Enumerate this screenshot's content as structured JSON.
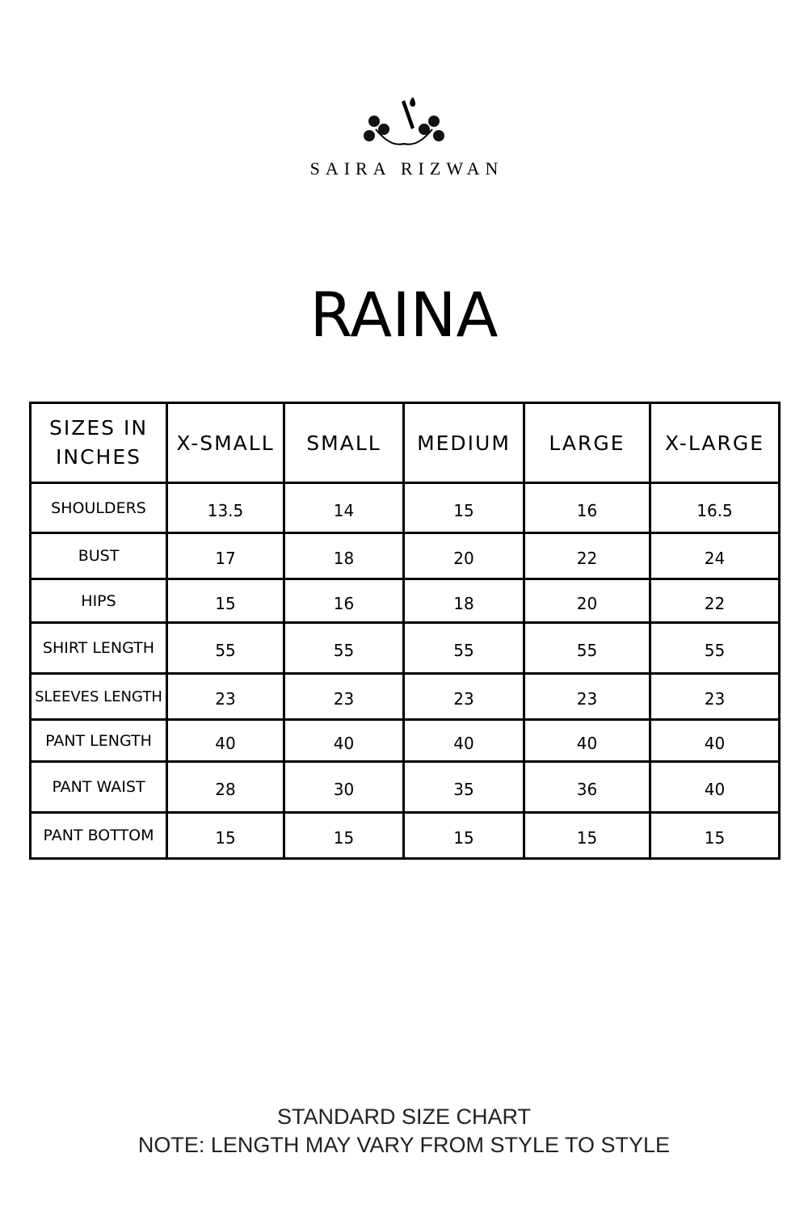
{
  "brand": {
    "name": "SAIRA RIZWAN",
    "logo_icon": "floral-s-monogram"
  },
  "title": "RAINA",
  "table": {
    "header": [
      "SIZES IN INCHES",
      "X-SMALL",
      "SMALL",
      "MEDIUM",
      "LARGE",
      "X-LARGE"
    ],
    "rows": [
      {
        "label": "SHOULDERS",
        "values": [
          "13.5",
          "14",
          "15",
          "16",
          "16.5"
        ]
      },
      {
        "label": "BUST",
        "values": [
          "17",
          "18",
          "20",
          "22",
          "24"
        ]
      },
      {
        "label": "HIPS",
        "values": [
          "15",
          "16",
          "18",
          "20",
          "22"
        ]
      },
      {
        "label": "SHIRT LENGTH",
        "values": [
          "55",
          "55",
          "55",
          "55",
          "55"
        ]
      },
      {
        "label": "SLEEVES LENGTH",
        "values": [
          "23",
          "23",
          "23",
          "23",
          "23"
        ]
      },
      {
        "label": "PANT LENGTH",
        "values": [
          "40",
          "40",
          "40",
          "40",
          "40"
        ]
      },
      {
        "label": "PANT WAIST",
        "values": [
          "28",
          "30",
          "35",
          "36",
          "40"
        ]
      },
      {
        "label": "PANT BOTTOM",
        "values": [
          "15",
          "15",
          "15",
          "15",
          "15"
        ]
      }
    ]
  },
  "footer": {
    "line1": "STANDARD SIZE CHART",
    "line2": "NOTE: LENGTH MAY VARY FROM STYLE TO STYLE"
  }
}
